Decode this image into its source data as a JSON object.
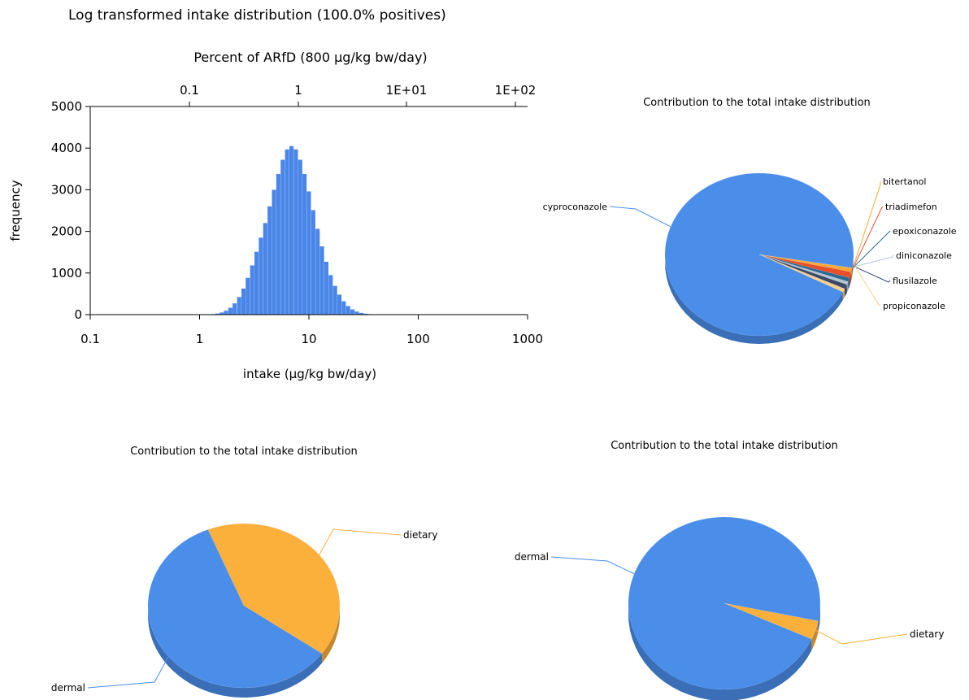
{
  "chart_data": [
    {
      "type": "bar",
      "title": "Log transformed intake distribution (100.0% positives)",
      "top_axis_label": "Percent of ARfD (800 μg/kg bw/day)",
      "top_ticks": [
        "0.1",
        "1",
        "1E+01",
        "1E+02"
      ],
      "xlabel": "intake (μg/kg bw/day)",
      "ylabel": "frequency",
      "x_scale": "log",
      "xlim": [
        0.1,
        1000
      ],
      "ylim": [
        0,
        5000
      ],
      "x_ticks": [
        "0.1",
        "1",
        "10",
        "100",
        "1000"
      ],
      "y_ticks": [
        "0",
        "1000",
        "2000",
        "3000",
        "4000",
        "5000"
      ],
      "grid": false,
      "bar_color": "#4a86e8",
      "peak_intake": 7.2,
      "peak_frequency": 4050,
      "bins": {
        "x": [
          1.21,
          1.33,
          1.46,
          1.6,
          1.75,
          1.92,
          2.1,
          2.31,
          2.53,
          2.77,
          3.04,
          3.33,
          3.65,
          4.0,
          4.39,
          4.81,
          5.27,
          5.78,
          6.34,
          6.95,
          7.62,
          8.35,
          9.15,
          10.03,
          11.0,
          12.06,
          13.22,
          14.49,
          15.88,
          17.41,
          19.08,
          20.92,
          22.93,
          25.14,
          27.56,
          30.21,
          33.12,
          36.3,
          39.8,
          43.63,
          47.82,
          52.42
        ],
        "frequency": [
          6,
          13,
          26,
          51,
          94,
          164,
          271,
          423,
          626,
          882,
          1182,
          1510,
          1850,
          2200,
          2600,
          3000,
          3380,
          3720,
          3970,
          4050,
          3970,
          3720,
          3380,
          2960,
          2510,
          2060,
          1640,
          1270,
          950,
          690,
          480,
          320,
          205,
          126,
          74,
          42,
          23,
          12,
          6,
          3,
          1,
          1
        ]
      }
    },
    {
      "type": "pie",
      "title": "Contribution to the total intake distribution",
      "slices": [
        {
          "label": "cyproconazole",
          "value": 95.0,
          "color": "#4a8eea"
        },
        {
          "label": "bitertanol",
          "value": 0.8,
          "color": "#f8a93b"
        },
        {
          "label": "triadimefon",
          "value": 1.2,
          "color": "#e8502a"
        },
        {
          "label": "epoxiconazole",
          "value": 0.8,
          "color": "#2b6b96"
        },
        {
          "label": "diniconazole",
          "value": 0.6,
          "color": "#b8c4d0"
        },
        {
          "label": "flusilazole",
          "value": 0.9,
          "color": "#3a4a6b"
        },
        {
          "label": "propiconazole",
          "value": 0.7,
          "color": "#f9cf8a"
        }
      ]
    },
    {
      "type": "pie",
      "title": "Contribution to the total intake distribution",
      "slices": [
        {
          "label": "dietary",
          "value": 41,
          "color": "#fbb03b"
        },
        {
          "label": "dermal",
          "value": 59,
          "color": "#4a8eea"
        }
      ]
    },
    {
      "type": "pie",
      "title": "Contribution to the total intake distribution",
      "slices": [
        {
          "label": "dermal",
          "value": 96.5,
          "color": "#4a8eea"
        },
        {
          "label": "dietary",
          "value": 3.5,
          "color": "#fbb03b"
        }
      ]
    }
  ]
}
